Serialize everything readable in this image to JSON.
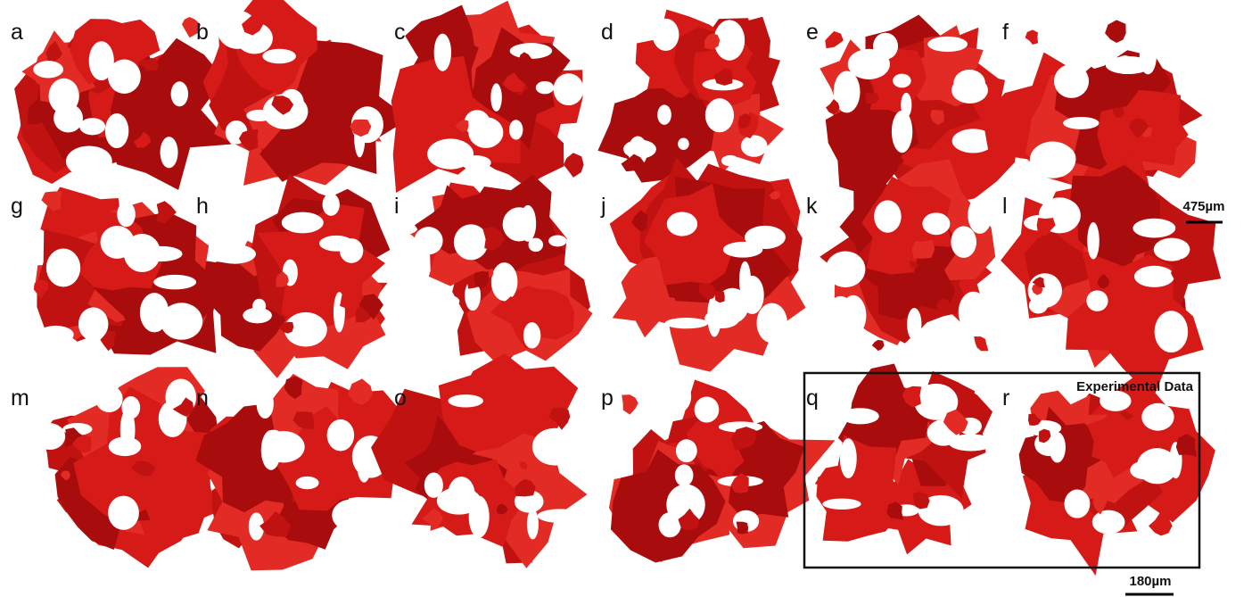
{
  "panels": [
    "a",
    "b",
    "c",
    "d",
    "e",
    "f",
    "g",
    "h",
    "i",
    "j",
    "k",
    "l",
    "m",
    "n",
    "o",
    "p",
    "q",
    "r"
  ],
  "box_title": "Experimental Data",
  "scale_bars": {
    "top": "475µm",
    "bottom": "180µm"
  }
}
